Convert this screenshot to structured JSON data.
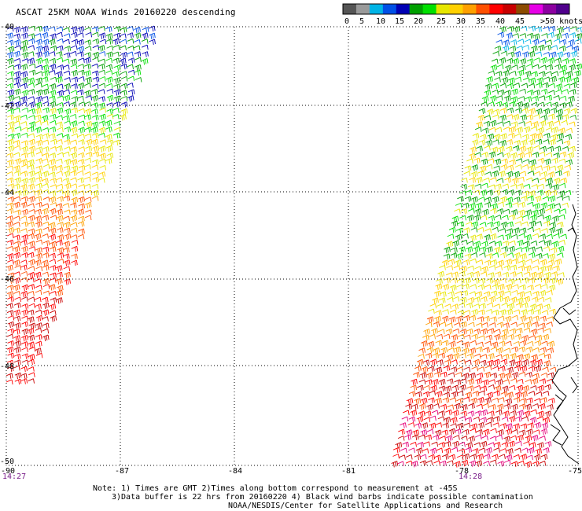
{
  "title": "ASCAT 25KM NOAA Winds 20160220 descending",
  "colorbar": {
    "colors": [
      "#555555",
      "#9a9a9a",
      "#00b4e6",
      "#0050e6",
      "#0000b4",
      "#00a000",
      "#00e000",
      "#e6e600",
      "#ffd000",
      "#ffa000",
      "#ff5000",
      "#ff0000",
      "#c80000",
      "#8c4b00",
      "#e600e6",
      "#8c00a0",
      "#50008c"
    ],
    "labels": [
      "0",
      "5",
      "10",
      "15",
      "20",
      "25",
      "30",
      "35",
      "40",
      "45",
      ">50 knots"
    ]
  },
  "axes": {
    "lon_labels": [
      "-90",
      "-87",
      "-84",
      "-81",
      "-78",
      "-75"
    ],
    "lat_labels": [
      "-40",
      "-42",
      "-44",
      "-46",
      "-48",
      "-50"
    ]
  },
  "times": {
    "left": "14:27",
    "right": "14:28"
  },
  "notes": [
    "Note: 1) Times are GMT 2)Times along bottom correspond to measurement at -45S",
    "3)Data buffer is 22 hrs from 20160220 4) Black wind barbs indicate possible contamination",
    "NOAA/NESDIS/Center for Satellite Applications and Research"
  ]
}
